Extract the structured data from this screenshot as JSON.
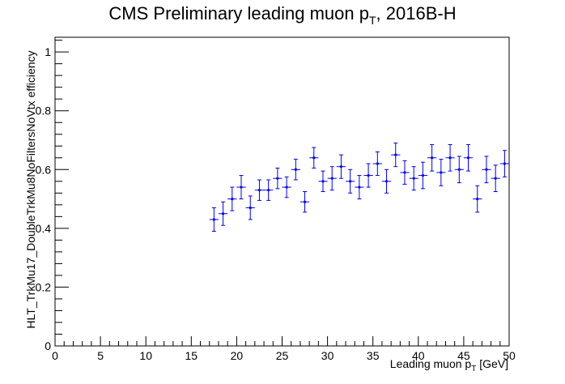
{
  "chart_data": {
    "type": "scatter",
    "title": "CMS Preliminary leading muon p",
    "title_sub": "T",
    "title_suffix": ", 2016B-H",
    "xlabel": "Leading muon p",
    "xlabel_sub": "T",
    "xlabel_suffix": " [GeV]",
    "ylabel": "HLT_TrkMu17_DoubleTrkMu8NoFiltersNoVtx efficiency",
    "xlim": [
      0,
      50
    ],
    "ylim": [
      0,
      1.05
    ],
    "xticks": [
      "0",
      "5",
      "10",
      "15",
      "20",
      "25",
      "30",
      "35",
      "40",
      "45",
      "50"
    ],
    "yticks": [
      "0",
      "0.2",
      "0.4",
      "0.6",
      "0.8",
      "1"
    ],
    "grid": false,
    "marker_color": "#0000ee",
    "series": [
      {
        "x_halfwidth": 0.5,
        "points": [
          {
            "x": 17.5,
            "y": 0.43,
            "err": 0.04
          },
          {
            "x": 18.5,
            "y": 0.45,
            "err": 0.04
          },
          {
            "x": 19.5,
            "y": 0.5,
            "err": 0.04
          },
          {
            "x": 20.5,
            "y": 0.54,
            "err": 0.04
          },
          {
            "x": 21.5,
            "y": 0.47,
            "err": 0.04
          },
          {
            "x": 22.5,
            "y": 0.53,
            "err": 0.035
          },
          {
            "x": 23.5,
            "y": 0.53,
            "err": 0.035
          },
          {
            "x": 24.5,
            "y": 0.57,
            "err": 0.035
          },
          {
            "x": 25.5,
            "y": 0.54,
            "err": 0.035
          },
          {
            "x": 26.5,
            "y": 0.6,
            "err": 0.035
          },
          {
            "x": 27.5,
            "y": 0.49,
            "err": 0.035
          },
          {
            "x": 28.5,
            "y": 0.64,
            "err": 0.035
          },
          {
            "x": 29.5,
            "y": 0.56,
            "err": 0.035
          },
          {
            "x": 30.5,
            "y": 0.57,
            "err": 0.04
          },
          {
            "x": 31.5,
            "y": 0.61,
            "err": 0.04
          },
          {
            "x": 32.5,
            "y": 0.56,
            "err": 0.04
          },
          {
            "x": 33.5,
            "y": 0.54,
            "err": 0.04
          },
          {
            "x": 34.5,
            "y": 0.58,
            "err": 0.04
          },
          {
            "x": 35.5,
            "y": 0.62,
            "err": 0.04
          },
          {
            "x": 36.5,
            "y": 0.56,
            "err": 0.04
          },
          {
            "x": 37.5,
            "y": 0.65,
            "err": 0.04
          },
          {
            "x": 38.5,
            "y": 0.59,
            "err": 0.04
          },
          {
            "x": 39.5,
            "y": 0.57,
            "err": 0.04
          },
          {
            "x": 40.5,
            "y": 0.58,
            "err": 0.045
          },
          {
            "x": 41.5,
            "y": 0.64,
            "err": 0.045
          },
          {
            "x": 42.5,
            "y": 0.59,
            "err": 0.045
          },
          {
            "x": 43.5,
            "y": 0.64,
            "err": 0.045
          },
          {
            "x": 44.5,
            "y": 0.6,
            "err": 0.045
          },
          {
            "x": 45.5,
            "y": 0.64,
            "err": 0.045
          },
          {
            "x": 46.5,
            "y": 0.5,
            "err": 0.045
          },
          {
            "x": 47.5,
            "y": 0.6,
            "err": 0.045
          },
          {
            "x": 48.5,
            "y": 0.57,
            "err": 0.045
          },
          {
            "x": 49.5,
            "y": 0.62,
            "err": 0.045
          }
        ]
      }
    ]
  }
}
